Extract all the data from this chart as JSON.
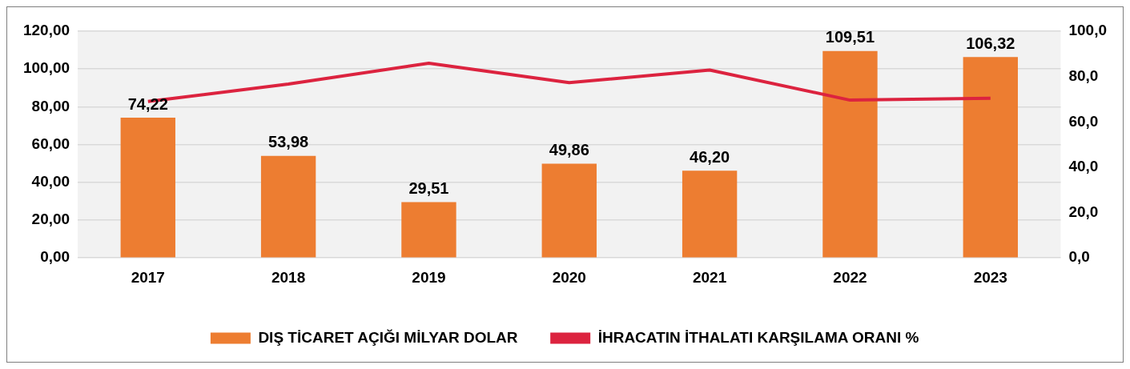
{
  "chart_data": {
    "type": "bar",
    "categories": [
      "2017",
      "2018",
      "2019",
      "2020",
      "2021",
      "2022",
      "2023"
    ],
    "series": [
      {
        "name": "DIŞ TİCARET AÇIĞI MİLYAR DOLAR",
        "color": "#ed7d31",
        "values": [
          74.22,
          53.98,
          29.51,
          49.86,
          46.2,
          109.51,
          106.32
        ],
        "value_labels": [
          "74,22",
          "53,98",
          "29,51",
          "49,86",
          "46,20",
          "109,51",
          "106,32"
        ]
      },
      {
        "name": "İHRACATIN İTHALATI KARŞILAMA ORANI %",
        "type": "line",
        "axis": "y2",
        "color": "#dc233f",
        "values": [
          69,
          76.7,
          85.9,
          77.3,
          82.9,
          69.6,
          70.4
        ]
      }
    ],
    "ylim": [
      0,
      120
    ],
    "yticks": [
      {
        "value": 0,
        "label": "0,00"
      },
      {
        "value": 20,
        "label": "20,00"
      },
      {
        "value": 40,
        "label": "40,00"
      },
      {
        "value": 60,
        "label": "60,00"
      },
      {
        "value": 80,
        "label": "80,00"
      },
      {
        "value": 100,
        "label": "100,00"
      },
      {
        "value": 120,
        "label": "120,00"
      }
    ],
    "y2lim": [
      0,
      100
    ],
    "y2ticks": [
      {
        "value": 0,
        "label": "0,0"
      },
      {
        "value": 20,
        "label": "20,0"
      },
      {
        "value": 40,
        "label": "40,0"
      },
      {
        "value": 60,
        "label": "60,0"
      },
      {
        "value": 80,
        "label": "80,0"
      },
      {
        "value": 100,
        "label": "100,0"
      }
    ],
    "grid": "y",
    "legend": "bottom",
    "marker": "none",
    "line_style": "solid"
  }
}
